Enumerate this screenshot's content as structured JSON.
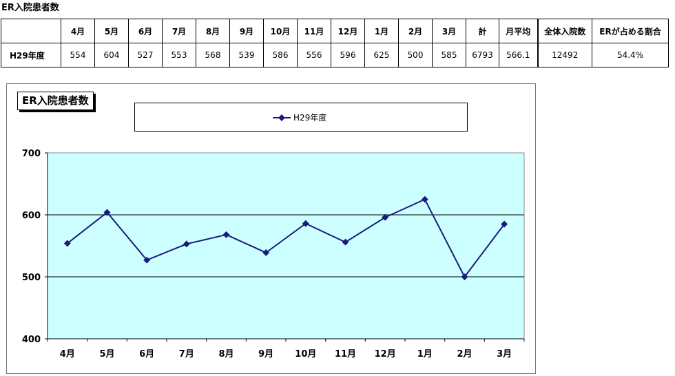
{
  "page_title": "ER入院患者数",
  "table": {
    "headers": [
      "",
      "4月",
      "5月",
      "6月",
      "7月",
      "8月",
      "9月",
      "10月",
      "11月",
      "12月",
      "1月",
      "2月",
      "3月",
      "計",
      "月平均",
      "全体入院数",
      "ERが占める割合"
    ],
    "row": [
      "H29年度",
      "554",
      "604",
      "527",
      "553",
      "568",
      "539",
      "586",
      "556",
      "596",
      "625",
      "500",
      "585",
      "6793",
      "566.1",
      "12492",
      "54.4%"
    ]
  },
  "chart_data": {
    "type": "line",
    "title": "ER入院患者数",
    "categories": [
      "4月",
      "5月",
      "6月",
      "7月",
      "8月",
      "9月",
      "10月",
      "11月",
      "12月",
      "1月",
      "2月",
      "3月"
    ],
    "series": [
      {
        "name": "H29年度",
        "values": [
          554,
          604,
          527,
          553,
          568,
          539,
          586,
          556,
          596,
          625,
          500,
          585
        ]
      }
    ],
    "ylim": [
      400,
      700
    ],
    "yticks": [
      "400",
      "500",
      "600",
      "700"
    ],
    "xlabel": "",
    "ylabel": "",
    "grid": true,
    "legend_position": "top",
    "colors": {
      "line": "#1a1a7a",
      "plot_background": "#ccffff",
      "gridline": "#000000"
    }
  }
}
